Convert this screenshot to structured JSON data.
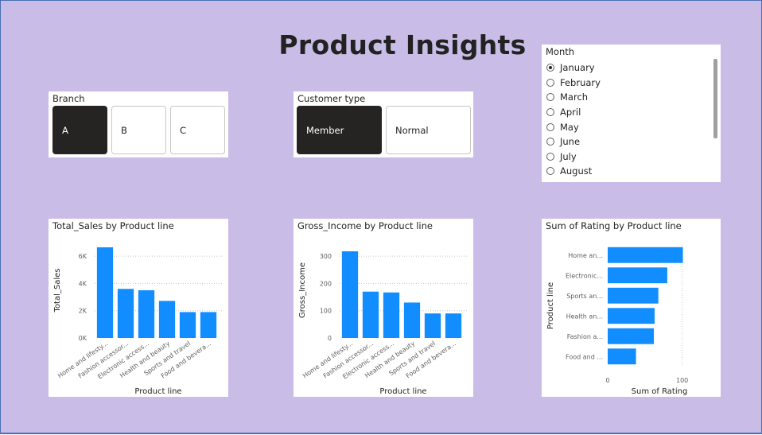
{
  "page": {
    "title": "Product Insights"
  },
  "branch_slicer": {
    "title": "Branch",
    "options": [
      "A",
      "B",
      "C"
    ],
    "selected": "A"
  },
  "customer_slicer": {
    "title": "Customer type",
    "options": [
      "Member",
      "Normal"
    ],
    "selected": "Member"
  },
  "month_slicer": {
    "title": "Month",
    "options": [
      "January",
      "February",
      "March",
      "April",
      "May",
      "June",
      "July",
      "August"
    ],
    "selected": "January"
  },
  "colors": {
    "bar": "#118dff",
    "background": "#c9bce6",
    "selected_button": "#252423"
  },
  "chart_data": [
    {
      "type": "bar",
      "title": "Total_Sales by Product line",
      "xlabel": "Product line",
      "ylabel": "Total_Sales",
      "categories": [
        "Home and lifesty...",
        "Fashion accessor...",
        "Electronic access...",
        "Health and beauty",
        "Sports and travel",
        "Food and bevera..."
      ],
      "values": [
        6650,
        3600,
        3500,
        2720,
        1900,
        1900
      ],
      "ylim": [
        0,
        7000
      ],
      "yticks": [
        0,
        2000,
        4000,
        6000
      ],
      "ytick_labels": [
        "0K",
        "2K",
        "4K",
        "6K"
      ],
      "grid": true
    },
    {
      "type": "bar",
      "title": "Gross_Income by Product line",
      "xlabel": "Product line",
      "ylabel": "Gross_Income",
      "categories": [
        "Home and lifesty...",
        "Fashion accessor...",
        "Electronic access...",
        "Health and beauty",
        "Sports and travel",
        "Food and bevera..."
      ],
      "values": [
        318,
        170,
        167,
        130,
        90,
        90
      ],
      "ylim": [
        0,
        350
      ],
      "yticks": [
        0,
        100,
        200,
        300
      ],
      "ytick_labels": [
        "0",
        "100",
        "200",
        "300"
      ],
      "grid": true
    },
    {
      "type": "bar",
      "orientation": "horizontal",
      "title": "Sum of Rating by Product line",
      "xlabel": "Sum of Rating",
      "ylabel": "Product line",
      "categories": [
        "Home an...",
        "Electronic...",
        "Sports an...",
        "Health an...",
        "Fashion a...",
        "Food and ..."
      ],
      "values": [
        101,
        80,
        68,
        63,
        62,
        38
      ],
      "xlim": [
        0,
        110
      ],
      "xticks": [
        0,
        100
      ],
      "xtick_labels": [
        "0",
        "100"
      ],
      "grid": true
    }
  ]
}
